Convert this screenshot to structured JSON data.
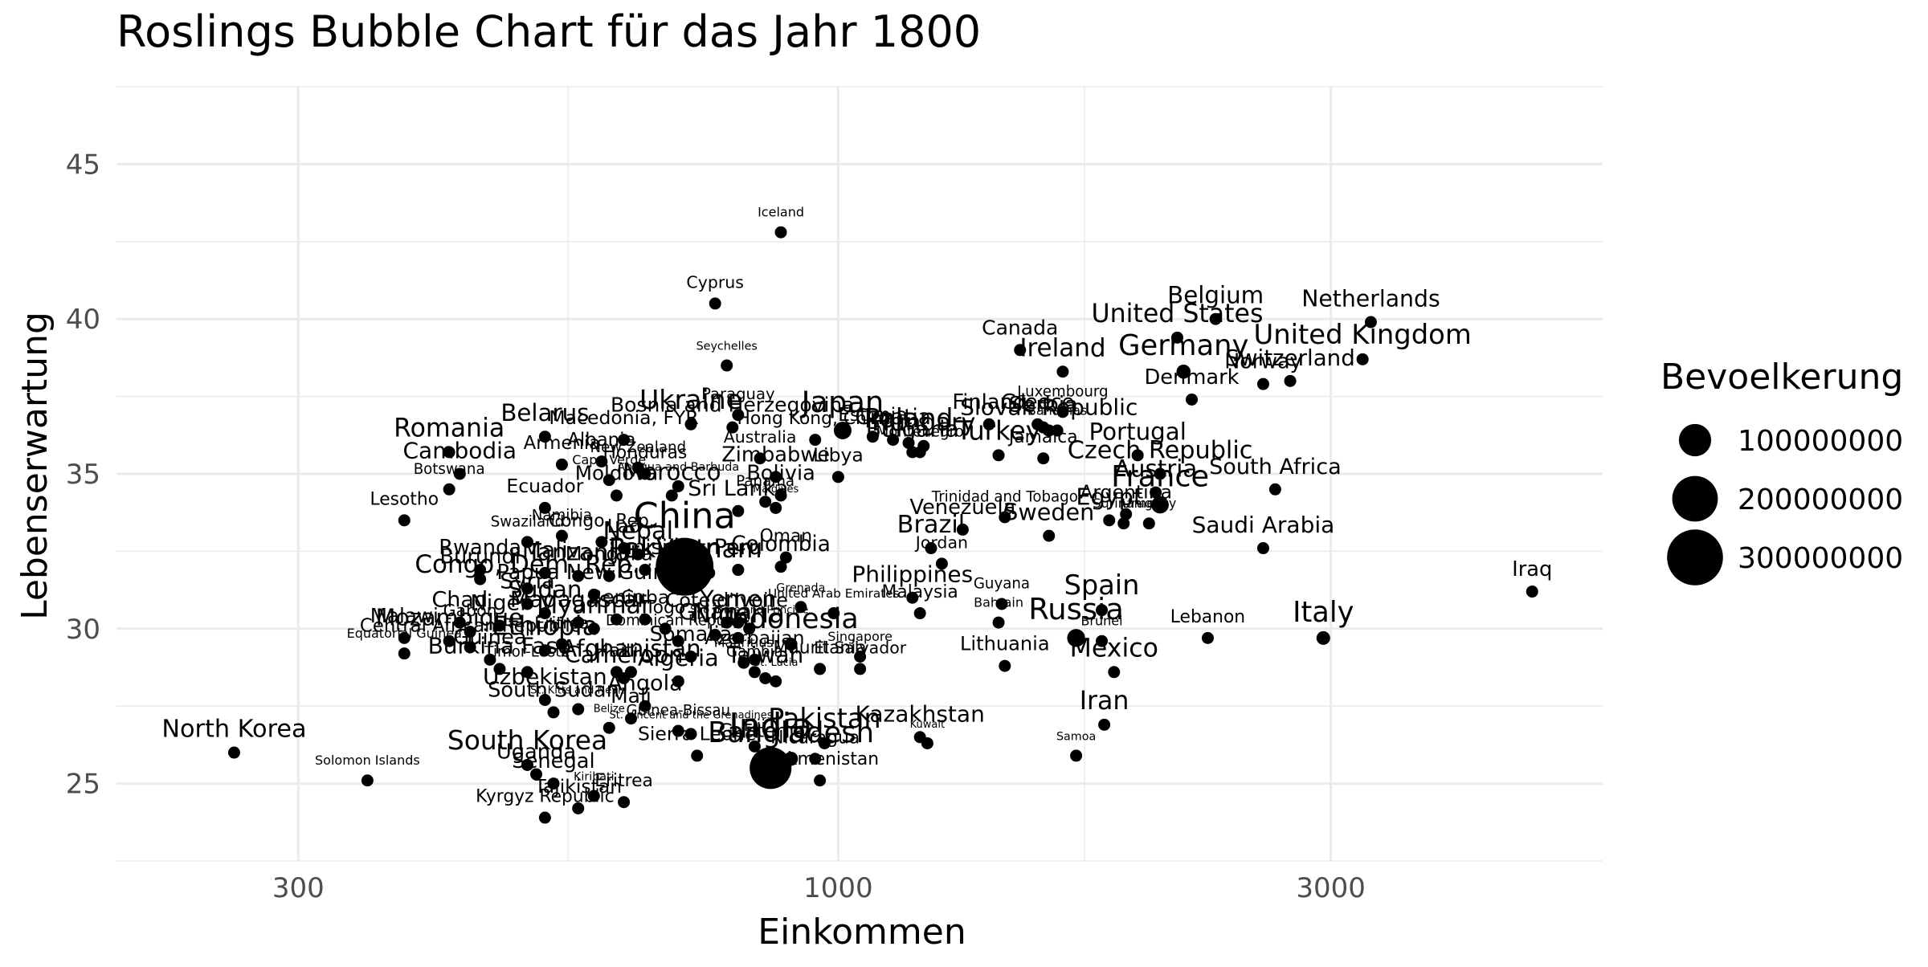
{
  "chart_data": {
    "type": "scatter",
    "title": "Roslings Bubble Chart für das Jahr 1800",
    "xlabel": "Einkommen",
    "ylabel": "Lebenserwartung",
    "x_scale": "log10",
    "xlim": [
      200,
      5500
    ],
    "ylim": [
      22.5,
      47.5
    ],
    "x_ticks": [
      300,
      1000,
      3000
    ],
    "x_tick_labels": [
      "300",
      "1000",
      "3000"
    ],
    "y_ticks": [
      25,
      30,
      35,
      40,
      45
    ],
    "y_tick_labels": [
      "25",
      "30",
      "35",
      "40",
      "45"
    ],
    "grid": true,
    "legend": {
      "title": "Bevoelkerung",
      "position": "right",
      "values": [
        100000000,
        200000000,
        300000000
      ],
      "labels": [
        "100000000",
        "200000000",
        "300000000"
      ]
    },
    "points": [
      {
        "label": "Iceland",
        "x": 880,
        "y": 42.8,
        "pop": 50000
      },
      {
        "label": "Cyprus",
        "x": 760,
        "y": 40.5,
        "pop": 200000
      },
      {
        "label": "Canada",
        "x": 1500,
        "y": 39.0,
        "pop": 800000
      },
      {
        "label": "Belgium",
        "x": 2320,
        "y": 40.0,
        "pop": 3000000
      },
      {
        "label": "Netherlands",
        "x": 3280,
        "y": 39.9,
        "pop": 2200000
      },
      {
        "label": "United States",
        "x": 2130,
        "y": 39.4,
        "pop": 6000000
      },
      {
        "label": "Ireland",
        "x": 1650,
        "y": 38.3,
        "pop": 5000000
      },
      {
        "label": "Germany",
        "x": 2160,
        "y": 38.3,
        "pop": 19000000
      },
      {
        "label": "United Kingdom",
        "x": 3220,
        "y": 38.7,
        "pop": 12000000
      },
      {
        "label": "Switzerland",
        "x": 2740,
        "y": 38.0,
        "pop": 1800000
      },
      {
        "label": "Norway",
        "x": 2580,
        "y": 37.9,
        "pop": 900000
      },
      {
        "label": "Denmark",
        "x": 2200,
        "y": 37.4,
        "pop": 1000000
      },
      {
        "label": "Luxembourg",
        "x": 1650,
        "y": 37.0,
        "pop": 100000
      },
      {
        "label": "Seychelles",
        "x": 780,
        "y": 38.5,
        "pop": 30000
      },
      {
        "label": "Ukraine",
        "x": 720,
        "y": 36.6,
        "pop": 10000000
      },
      {
        "label": "Japan",
        "x": 1010,
        "y": 36.4,
        "pop": 30000000
      },
      {
        "label": "Finland",
        "x": 1400,
        "y": 36.6,
        "pop": 1000000
      },
      {
        "label": "Greece",
        "x": 1560,
        "y": 36.6,
        "pop": 1000000
      },
      {
        "label": "Slovak Republic",
        "x": 1600,
        "y": 36.4,
        "pop": 2000000
      },
      {
        "label": "Croatia",
        "x": 1130,
        "y": 36.1,
        "pop": 1200000
      },
      {
        "label": "Estonia",
        "x": 1080,
        "y": 36.2,
        "pop": 500000
      },
      {
        "label": "Poland",
        "x": 1170,
        "y": 36.0,
        "pop": 10000000
      },
      {
        "label": "Hungary",
        "x": 1210,
        "y": 35.9,
        "pop": 4000000
      },
      {
        "label": "Bulgaria",
        "x": 1180,
        "y": 35.7,
        "pop": 2000000
      },
      {
        "label": "Belarus",
        "x": 520,
        "y": 36.2,
        "pop": 3000000
      },
      {
        "label": "Macedonia, FYR",
        "x": 620,
        "y": 36.1,
        "pop": 500000
      },
      {
        "label": "Albania",
        "x": 590,
        "y": 35.4,
        "pop": 400000
      },
      {
        "label": "Paraguay",
        "x": 800,
        "y": 36.9,
        "pop": 150000
      },
      {
        "label": "Montenegro",
        "x": 1200,
        "y": 35.7,
        "pop": 100000
      },
      {
        "label": "Bosnia and Herzegovina",
        "x": 790,
        "y": 36.5,
        "pop": 800000
      },
      {
        "label": "Hong Kong, China",
        "x": 950,
        "y": 36.1,
        "pop": 300000
      },
      {
        "label": "Serbia",
        "x": 1580,
        "y": 36.5,
        "pop": 1500000
      },
      {
        "label": "Bahamas",
        "x": 1630,
        "y": 36.4,
        "pop": 50000
      },
      {
        "label": "Turkey",
        "x": 1430,
        "y": 35.6,
        "pop": 8000000
      },
      {
        "label": "Jamaica",
        "x": 1580,
        "y": 35.5,
        "pop": 300000
      },
      {
        "label": "Portugal",
        "x": 1950,
        "y": 35.6,
        "pop": 3000000
      },
      {
        "label": "Czech Republic",
        "x": 2050,
        "y": 35.0,
        "pop": 4000000
      },
      {
        "label": "Austria",
        "x": 2030,
        "y": 34.4,
        "pop": 3000000
      },
      {
        "label": "France",
        "x": 2050,
        "y": 34.0,
        "pop": 29000000
      },
      {
        "label": "Romania",
        "x": 420,
        "y": 35.7,
        "pop": 6000000
      },
      {
        "label": "Cambodia",
        "x": 430,
        "y": 35.0,
        "pop": 2000000
      },
      {
        "label": "Armenia",
        "x": 540,
        "y": 35.3,
        "pop": 400000
      },
      {
        "label": "Cape Verde",
        "x": 600,
        "y": 34.8,
        "pop": 50000
      },
      {
        "label": "New Zealand",
        "x": 640,
        "y": 35.2,
        "pop": 100000
      },
      {
        "label": "Honduras",
        "x": 650,
        "y": 35.0,
        "pop": 300000
      },
      {
        "label": "Australia",
        "x": 840,
        "y": 35.5,
        "pop": 200000
      },
      {
        "label": "Zimbabwe",
        "x": 870,
        "y": 34.9,
        "pop": 1000000
      },
      {
        "label": "Antigua and Barbuda",
        "x": 700,
        "y": 34.6,
        "pop": 30000
      },
      {
        "label": "Moldova",
        "x": 610,
        "y": 34.3,
        "pop": 700000
      },
      {
        "label": "Morocco",
        "x": 690,
        "y": 34.3,
        "pop": 3000000
      },
      {
        "label": "Bolivia",
        "x": 880,
        "y": 34.3,
        "pop": 1000000
      },
      {
        "label": "Libya",
        "x": 1000,
        "y": 34.9,
        "pop": 500000
      },
      {
        "label": "Panama",
        "x": 850,
        "y": 34.1,
        "pop": 100000
      },
      {
        "label": "Maldives",
        "x": 870,
        "y": 33.9,
        "pop": 20000
      },
      {
        "label": "Sri Lanka",
        "x": 800,
        "y": 33.8,
        "pop": 1500000
      },
      {
        "label": "Trinidad and Tobago",
        "x": 1450,
        "y": 33.6,
        "pop": 100000
      },
      {
        "label": "Argentina",
        "x": 1900,
        "y": 33.7,
        "pop": 500000
      },
      {
        "label": "Egypt",
        "x": 1830,
        "y": 33.5,
        "pop": 2500000
      },
      {
        "label": "Suriname",
        "x": 1890,
        "y": 33.4,
        "pop": 50000
      },
      {
        "label": "Uruguay",
        "x": 2000,
        "y": 33.4,
        "pop": 50000
      },
      {
        "label": "South Africa",
        "x": 2650,
        "y": 34.5,
        "pop": 1500000
      },
      {
        "label": "Botswana",
        "x": 420,
        "y": 34.5,
        "pop": 100000
      },
      {
        "label": "Lesotho",
        "x": 380,
        "y": 33.5,
        "pop": 300000
      },
      {
        "label": "Ecuador",
        "x": 520,
        "y": 33.9,
        "pop": 500000
      },
      {
        "label": "Venezuela",
        "x": 1320,
        "y": 33.2,
        "pop": 1000000
      },
      {
        "label": "Sweden",
        "x": 1600,
        "y": 33.0,
        "pop": 2400000
      },
      {
        "label": "Saudi Arabia",
        "x": 2580,
        "y": 32.6,
        "pop": 2000000
      },
      {
        "label": "Brazil",
        "x": 1230,
        "y": 32.6,
        "pop": 4000000
      },
      {
        "label": "Jordan",
        "x": 1260,
        "y": 32.1,
        "pop": 200000
      },
      {
        "label": "Swaziland",
        "x": 500,
        "y": 32.8,
        "pop": 100000
      },
      {
        "label": "Namibia",
        "x": 540,
        "y": 33.0,
        "pop": 100000
      },
      {
        "label": "Congo, Rep.",
        "x": 590,
        "y": 32.8,
        "pop": 300000
      },
      {
        "label": "Lao",
        "x": 620,
        "y": 32.6,
        "pop": 500000
      },
      {
        "label": "Nepal",
        "x": 640,
        "y": 32.4,
        "pop": 4000000
      },
      {
        "label": "Rwanda",
        "x": 450,
        "y": 31.9,
        "pop": 1000000
      },
      {
        "label": "Burundi",
        "x": 450,
        "y": 31.6,
        "pop": 1000000
      },
      {
        "label": "Mali",
        "x": 520,
        "y": 31.8,
        "pop": 2000000
      },
      {
        "label": "Tanzania",
        "x": 560,
        "y": 31.7,
        "pop": 3000000
      },
      {
        "label": "Mongolia",
        "x": 600,
        "y": 31.7,
        "pop": 600000
      },
      {
        "label": "Tunisia",
        "x": 650,
        "y": 31.9,
        "pop": 1000000
      },
      {
        "label": "Pakistan",
        "x": 680,
        "y": 31.8,
        "pop": 12000000
      },
      {
        "label": "Vietnam",
        "x": 750,
        "y": 31.8,
        "pop": 6000000
      },
      {
        "label": "Peru",
        "x": 800,
        "y": 31.9,
        "pop": 1500000
      },
      {
        "label": "Colombia",
        "x": 880,
        "y": 32.0,
        "pop": 1200000
      },
      {
        "label": "Oman",
        "x": 890,
        "y": 32.3,
        "pop": 300000
      },
      {
        "label": "China",
        "x": 710,
        "y": 32.0,
        "pop": 321000000
      },
      {
        "label": "Congo, Dem. Rep.",
        "x": 500,
        "y": 31.3,
        "pop": 5000000
      },
      {
        "label": "Papua New Guinea",
        "x": 580,
        "y": 31.1,
        "pop": 1000000
      },
      {
        "label": "Syria",
        "x": 500,
        "y": 30.8,
        "pop": 1500000
      },
      {
        "label": "Sudan",
        "x": 520,
        "y": 30.5,
        "pop": 3000000
      },
      {
        "label": "Chad",
        "x": 430,
        "y": 30.2,
        "pop": 1500000
      },
      {
        "label": "Niger",
        "x": 470,
        "y": 30.1,
        "pop": 1500000
      },
      {
        "label": "Gabon",
        "x": 440,
        "y": 29.9,
        "pop": 200000
      },
      {
        "label": "Malawi",
        "x": 380,
        "y": 29.7,
        "pop": 700000
      },
      {
        "label": "Mozambique",
        "x": 420,
        "y": 29.6,
        "pop": 2500000
      },
      {
        "label": "Central African Republic",
        "x": 440,
        "y": 29.4,
        "pop": 400000
      },
      {
        "label": "Equatorial Guinea",
        "x": 380,
        "y": 29.2,
        "pop": 50000
      },
      {
        "label": "Ethiopia",
        "x": 520,
        "y": 29.3,
        "pop": 8000000
      },
      {
        "label": "Eritrea",
        "x": 540,
        "y": 29.5,
        "pop": 200000
      },
      {
        "label": "Guinea",
        "x": 460,
        "y": 29.0,
        "pop": 1000000
      },
      {
        "label": "Madagascar",
        "x": 560,
        "y": 30.2,
        "pop": 2000000
      },
      {
        "label": "Myanmar",
        "x": 580,
        "y": 30.0,
        "pop": 4000000
      },
      {
        "label": "Benin",
        "x": 610,
        "y": 30.3,
        "pop": 600000
      },
      {
        "label": "Cuba",
        "x": 650,
        "y": 30.3,
        "pop": 500000
      },
      {
        "label": "Togo",
        "x": 680,
        "y": 30.0,
        "pop": 300000
      },
      {
        "label": "Burkina Faso",
        "x": 470,
        "y": 28.7,
        "pop": 2000000
      },
      {
        "label": "Timor-Leste",
        "x": 500,
        "y": 28.6,
        "pop": 100000
      },
      {
        "label": "Dominican Republic",
        "x": 700,
        "y": 29.6,
        "pop": 100000
      },
      {
        "label": "Haiti",
        "x": 610,
        "y": 28.6,
        "pop": 500000
      },
      {
        "label": "Cameroon",
        "x": 620,
        "y": 28.4,
        "pop": 2500000
      },
      {
        "label": "Algeria",
        "x": 700,
        "y": 28.3,
        "pop": 2500000
      },
      {
        "label": "Somalia",
        "x": 720,
        "y": 29.1,
        "pop": 1000000
      },
      {
        "label": "Cote d'Ivoire",
        "x": 780,
        "y": 30.2,
        "pop": 600000
      },
      {
        "label": "Yemen",
        "x": 800,
        "y": 30.2,
        "pop": 2500000
      },
      {
        "label": "Sao Tome and Principe",
        "x": 820,
        "y": 30.0,
        "pop": 20000
      },
      {
        "label": "Nigeria",
        "x": 800,
        "y": 29.7,
        "pop": 8000000
      },
      {
        "label": "Ghana",
        "x": 760,
        "y": 29.8,
        "pop": 2000000
      },
      {
        "label": "Azerbaijan",
        "x": 830,
        "y": 29.0,
        "pop": 500000
      },
      {
        "label": "Indonesia",
        "x": 900,
        "y": 29.5,
        "pop": 16000000
      },
      {
        "label": "United Arab Emirates",
        "x": 990,
        "y": 30.5,
        "pop": 40000
      },
      {
        "label": "Philippines",
        "x": 1180,
        "y": 31.0,
        "pop": 2000000
      },
      {
        "label": "Malaysia",
        "x": 1200,
        "y": 30.5,
        "pop": 300000
      },
      {
        "label": "Guyana",
        "x": 1440,
        "y": 30.8,
        "pop": 100000
      },
      {
        "label": "Bahrain",
        "x": 1430,
        "y": 30.2,
        "pop": 50000
      },
      {
        "label": "Grenada",
        "x": 920,
        "y": 30.7,
        "pop": 30000
      },
      {
        "label": "Russia",
        "x": 1700,
        "y": 29.7,
        "pop": 31000000
      },
      {
        "label": "Spain",
        "x": 1800,
        "y": 30.6,
        "pop": 11000000
      },
      {
        "label": "Brunei",
        "x": 1800,
        "y": 29.6,
        "pop": 50000
      },
      {
        "label": "Iraq",
        "x": 4700,
        "y": 31.2,
        "pop": 1000000
      },
      {
        "label": "Italy",
        "x": 2950,
        "y": 29.7,
        "pop": 18000000
      },
      {
        "label": "Lebanon",
        "x": 2280,
        "y": 29.7,
        "pop": 300000
      },
      {
        "label": "Singapore",
        "x": 1050,
        "y": 29.1,
        "pop": 50000
      },
      {
        "label": "El Salvador",
        "x": 1050,
        "y": 28.7,
        "pop": 200000
      },
      {
        "label": "Lithuania",
        "x": 1450,
        "y": 28.8,
        "pop": 600000
      },
      {
        "label": "Mauritania",
        "x": 960,
        "y": 28.7,
        "pop": 300000
      },
      {
        "label": "Afghanistan",
        "x": 630,
        "y": 28.6,
        "pop": 3000000
      },
      {
        "label": "Mauritius",
        "x": 810,
        "y": 28.9,
        "pop": 50000
      },
      {
        "label": "Gambia",
        "x": 830,
        "y": 28.6,
        "pop": 100000
      },
      {
        "label": "Taiwan",
        "x": 850,
        "y": 28.4,
        "pop": 2000000
      },
      {
        "label": "St. Lucia",
        "x": 870,
        "y": 28.3,
        "pop": 20000
      },
      {
        "label": "Mexico",
        "x": 1850,
        "y": 28.6,
        "pop": 6000000
      },
      {
        "label": "Uzbekistan",
        "x": 520,
        "y": 27.7,
        "pop": 2000000
      },
      {
        "label": "South Sudan",
        "x": 530,
        "y": 27.3,
        "pop": 1000000
      },
      {
        "label": "St. Kitts and Nevis",
        "x": 560,
        "y": 27.4,
        "pop": 20000
      },
      {
        "label": "Angola",
        "x": 650,
        "y": 27.5,
        "pop": 1500000
      },
      {
        "label": "Mali",
        "x": 630,
        "y": 27.1,
        "pop": 800000
      },
      {
        "label": "Belize",
        "x": 600,
        "y": 26.8,
        "pop": 20000
      },
      {
        "label": "Guinea-Bissau",
        "x": 700,
        "y": 26.7,
        "pop": 100000
      },
      {
        "label": "St. Vincent and the Grenadines",
        "x": 720,
        "y": 26.6,
        "pop": 20000
      },
      {
        "label": "Kazakhstan",
        "x": 1200,
        "y": 26.5,
        "pop": 2000000
      },
      {
        "label": "Kuwait",
        "x": 1220,
        "y": 26.3,
        "pop": 20000
      },
      {
        "label": "Fiji",
        "x": 830,
        "y": 26.2,
        "pop": 200000
      },
      {
        "label": "Guatemala",
        "x": 860,
        "y": 26.0,
        "pop": 500000
      },
      {
        "label": "Pakistan",
        "x": 970,
        "y": 26.3,
        "pop": 11000000
      },
      {
        "label": "Bangladesh",
        "x": 900,
        "y": 25.8,
        "pop": 19000000
      },
      {
        "label": "Nicaragua",
        "x": 950,
        "y": 25.8,
        "pop": 300000
      },
      {
        "label": "India",
        "x": 860,
        "y": 25.5,
        "pop": 168000000
      },
      {
        "label": "North Korea",
        "x": 260,
        "y": 26.0,
        "pop": 4000000
      },
      {
        "label": "South Korea",
        "x": 500,
        "y": 25.6,
        "pop": 9000000
      },
      {
        "label": "Uganda",
        "x": 510,
        "y": 25.3,
        "pop": 1000000
      },
      {
        "label": "Senegal",
        "x": 530,
        "y": 25.0,
        "pop": 1000000
      },
      {
        "label": "Solomon Islands",
        "x": 350,
        "y": 25.1,
        "pop": 50000
      },
      {
        "label": "Kiribati",
        "x": 580,
        "y": 24.6,
        "pop": 30000
      },
      {
        "label": "Tajikistan",
        "x": 560,
        "y": 24.2,
        "pop": 500000
      },
      {
        "label": "Eritrea",
        "x": 620,
        "y": 24.4,
        "pop": 300000
      },
      {
        "label": "Kyrgyz Republic",
        "x": 520,
        "y": 23.9,
        "pop": 300000
      },
      {
        "label": "Sierra Leone",
        "x": 730,
        "y": 25.9,
        "pop": 500000
      },
      {
        "label": "Turkmenistan",
        "x": 960,
        "y": 25.1,
        "pop": 300000
      },
      {
        "label": "Samoa",
        "x": 1700,
        "y": 25.9,
        "pop": 30000
      },
      {
        "label": "Iran",
        "x": 1810,
        "y": 26.9,
        "pop": 6000000
      }
    ]
  }
}
